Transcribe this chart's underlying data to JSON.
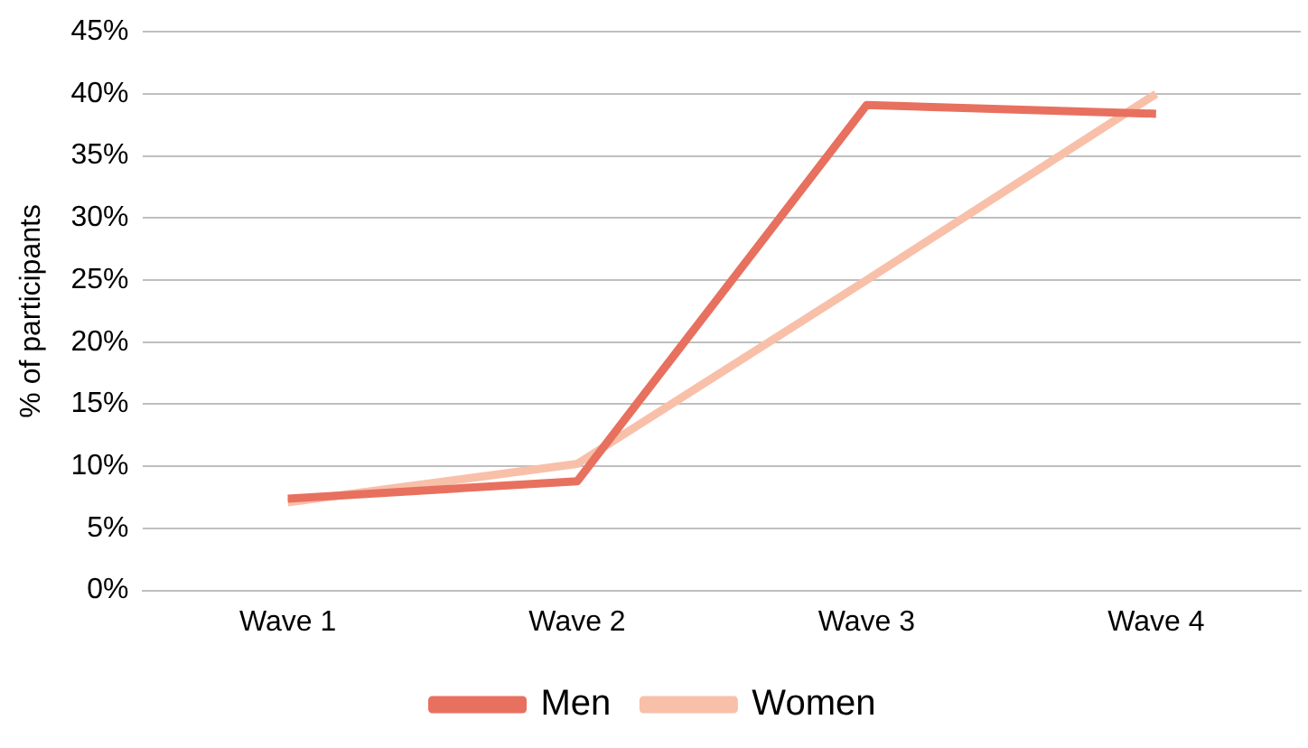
{
  "chart_data": {
    "type": "line",
    "ylabel": "% of participants",
    "categories": [
      "Wave 1",
      "Wave 2",
      "Wave 3",
      "Wave 4"
    ],
    "series": [
      {
        "name": "Men",
        "color": "#e8705f",
        "values": [
          7.4,
          8.8,
          39.1,
          38.4
        ]
      },
      {
        "name": "Women",
        "color": "#f8c0a9",
        "values": [
          7.1,
          10.2,
          25,
          40
        ]
      }
    ],
    "ylim": [
      0,
      45
    ],
    "yticks": [
      {
        "value": 0,
        "label": "0%"
      },
      {
        "value": 5,
        "label": "5%"
      },
      {
        "value": 10,
        "label": "10%"
      },
      {
        "value": 15,
        "label": "15%"
      },
      {
        "value": 20,
        "label": "20%"
      },
      {
        "value": 25,
        "label": "25%"
      },
      {
        "value": 30,
        "label": "30%"
      },
      {
        "value": 35,
        "label": "35%"
      },
      {
        "value": 40,
        "label": "40%"
      },
      {
        "value": 45,
        "label": "45%"
      }
    ],
    "grid": "y",
    "legend": "bottom",
    "marker": "none",
    "line_style": "solid"
  }
}
